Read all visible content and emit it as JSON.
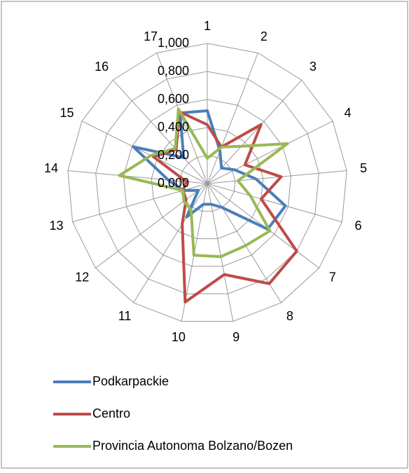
{
  "chart_data": {
    "type": "radar",
    "categories": [
      "1",
      "2",
      "3",
      "4",
      "5",
      "6",
      "7",
      "8",
      "9",
      "10",
      "11",
      "12",
      "13",
      "14",
      "15",
      "16",
      "17"
    ],
    "series": [
      {
        "name": "Podkarpackie",
        "color": "#4a7ebb",
        "values": [
          0.52,
          0.25,
          0.15,
          0.22,
          0.35,
          0.58,
          0.54,
          0.2,
          0.15,
          0.15,
          0.28,
          0.08,
          0.18,
          0.28,
          0.59,
          0.25,
          0.54
        ]
      },
      {
        "name": "Centro",
        "color": "#be4b48",
        "values": [
          0.42,
          0.28,
          0.57,
          0.3,
          0.53,
          0.4,
          0.8,
          0.84,
          0.66,
          0.86,
          0.34,
          0.19,
          0.18,
          0.15,
          0.43,
          0.33,
          0.55
        ]
      },
      {
        "name": "Provincia Autonoma Bolzano/Bozen",
        "color": "#98b954",
        "values": [
          0.18,
          0.28,
          0.36,
          0.64,
          0.22,
          0.32,
          0.56,
          0.52,
          0.53,
          0.52,
          0.22,
          0.21,
          0.18,
          0.63,
          0.45,
          0.34,
          0.57
        ]
      }
    ],
    "ylim": [
      0,
      1
    ],
    "yticks": [
      {
        "value": 0,
        "label": "0,000"
      },
      {
        "value": 0.2,
        "label": "0,200"
      },
      {
        "value": 0.4,
        "label": "0,400"
      },
      {
        "value": 0.6,
        "label": "0,600"
      },
      {
        "value": 0.8,
        "label": "0,800"
      },
      {
        "value": 1,
        "label": "1,000"
      }
    ],
    "grid": true,
    "legend": "bottom"
  }
}
